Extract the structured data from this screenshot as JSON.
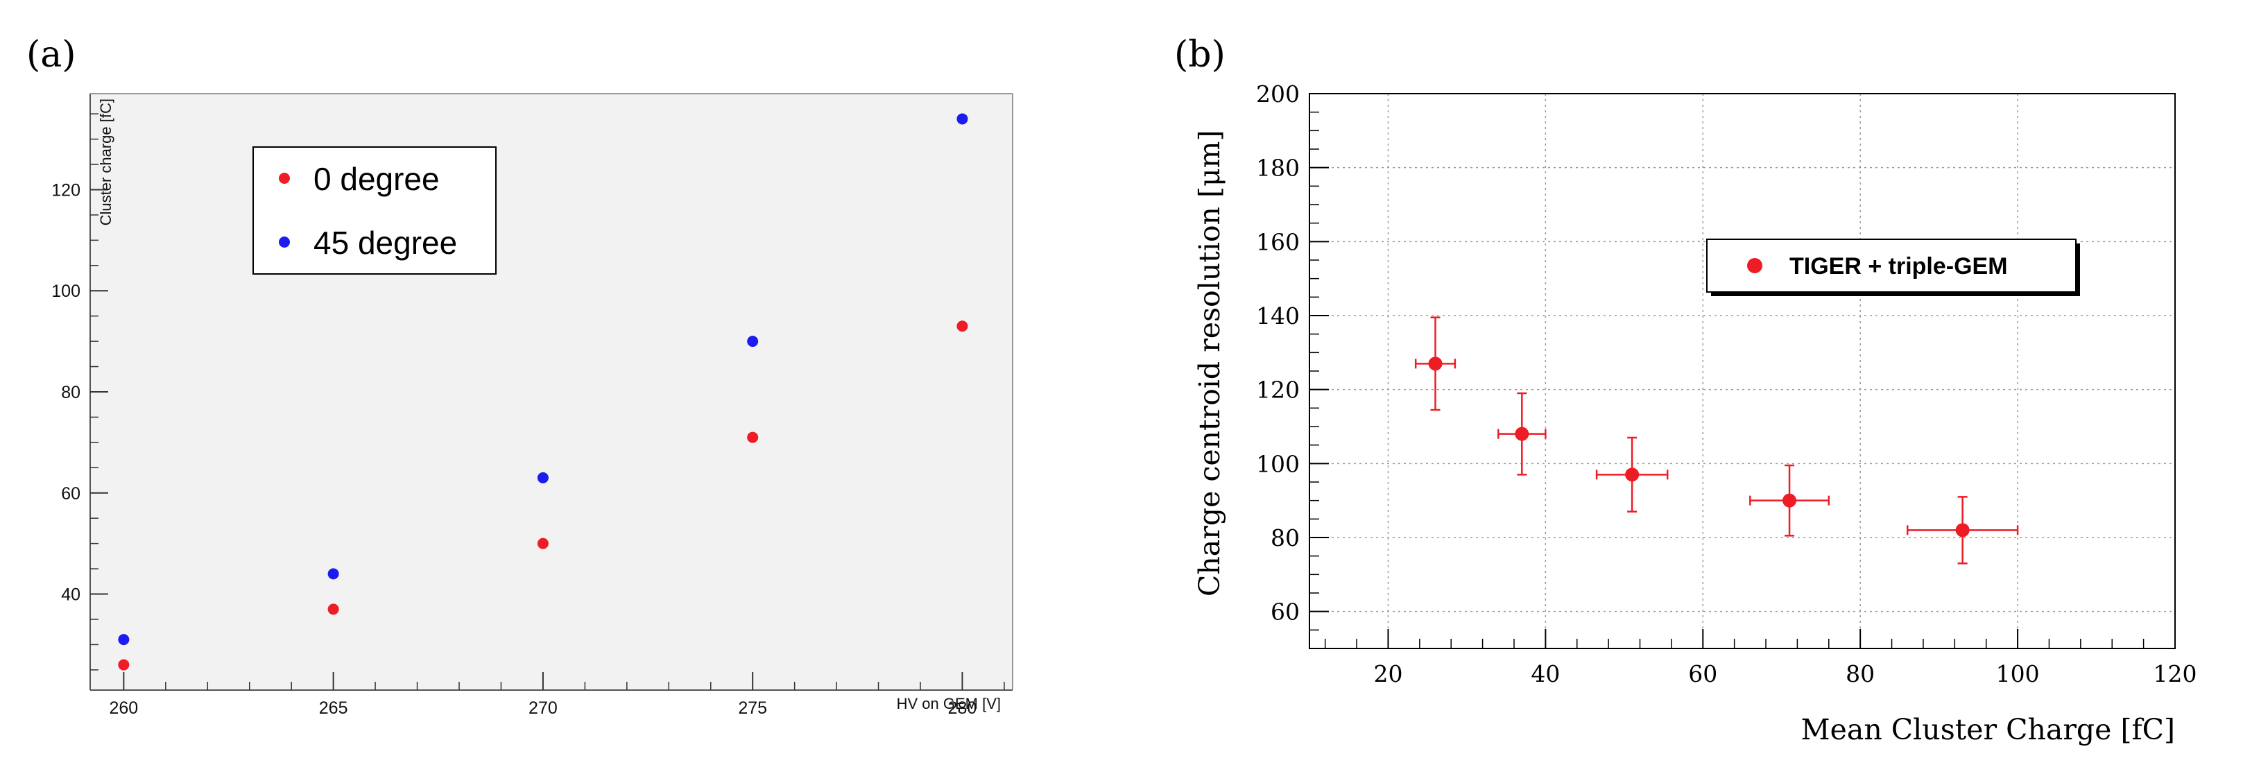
{
  "panels": {
    "a": {
      "label": "(a)"
    },
    "b": {
      "label": "(b)"
    }
  },
  "colors": {
    "red": "#ee1c25",
    "blue": "#1c1cf0",
    "grid": "#9a9a9a"
  },
  "chart_data": [
    {
      "id": "a",
      "type": "scatter",
      "xlabel": "HV on GEM [V]",
      "ylabel": "Cluster charge [fC]",
      "xlim": [
        259.2,
        281.2
      ],
      "ylim": [
        21,
        139
      ],
      "xticks": [
        260,
        265,
        270,
        275,
        280
      ],
      "yticks": [
        40,
        60,
        80,
        100,
        120
      ],
      "legend": {
        "position": "top-left"
      },
      "series": [
        {
          "name": "0 degree",
          "color": "#ee1c25",
          "x": [
            260,
            265,
            270,
            275,
            280
          ],
          "y": [
            26,
            37,
            50,
            71,
            93
          ]
        },
        {
          "name": "45 degree",
          "color": "#1c1cf0",
          "x": [
            260,
            265,
            270,
            275,
            280
          ],
          "y": [
            31,
            44,
            63,
            90,
            134
          ]
        }
      ]
    },
    {
      "id": "b",
      "type": "scatter",
      "xlabel": "Mean Cluster Charge [fC]",
      "ylabel": "Charge centroid resolution [μm]",
      "xlim": [
        10,
        120
      ],
      "ylim": [
        50,
        200
      ],
      "xticks": [
        20,
        40,
        60,
        80,
        100,
        120
      ],
      "yticks": [
        60,
        80,
        100,
        120,
        140,
        160,
        180,
        200
      ],
      "grid": true,
      "legend": {
        "position": "top-right"
      },
      "series": [
        {
          "name": "TIGER + triple-GEM",
          "color": "#ee1c25",
          "x": [
            26,
            37,
            51,
            71,
            93
          ],
          "y": [
            127,
            108,
            97,
            90,
            82
          ],
          "xerr": [
            2.5,
            3,
            4.5,
            5,
            7
          ],
          "yerr": [
            12.5,
            11,
            10,
            9.5,
            9
          ]
        }
      ]
    }
  ]
}
